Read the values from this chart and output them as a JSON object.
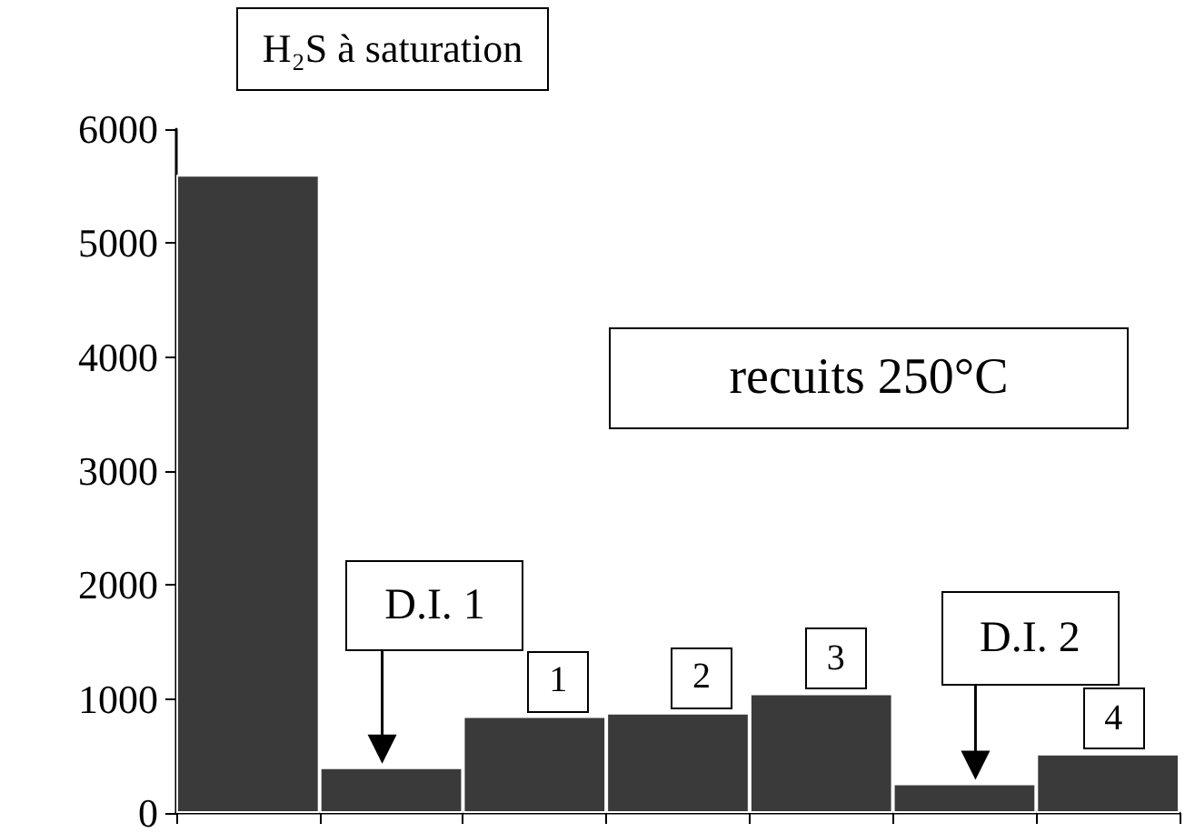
{
  "chart_data": {
    "type": "bar",
    "categories": [
      null,
      null,
      null,
      null,
      null,
      null,
      null
    ],
    "values": [
      5600,
      400,
      850,
      880,
      1050,
      260,
      520
    ],
    "color": "#3a3a3a",
    "ylim": [
      0,
      6000
    ],
    "yticks": [
      0,
      1000,
      2000,
      3000,
      4000,
      5000,
      6000
    ],
    "grid": false,
    "annotations": [
      "H₂S à saturation",
      "recuits 250°C",
      "D.I. 1",
      "1",
      "2",
      "3",
      "D.I. 2",
      "4"
    ]
  }
}
